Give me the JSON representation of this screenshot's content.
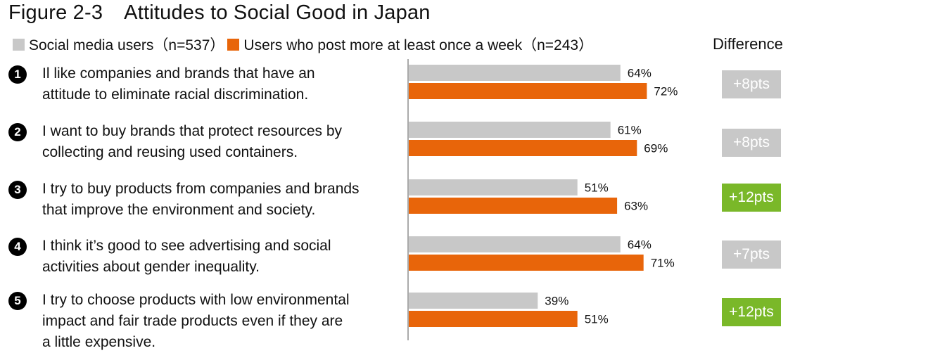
{
  "title": {
    "number": "Figure 2-3",
    "text": "Attitudes to Social Good in Japan"
  },
  "legend": [
    {
      "label": "Social media users（n=537）",
      "color": "#c8c8c8"
    },
    {
      "label": "Users who post more at least once a week（n=243）",
      "color": "#e8650a"
    }
  ],
  "difference_header": "Difference",
  "rows": [
    {
      "badge": "1",
      "lines": [
        "Il like companies and brands that have an",
        "attitude to eliminate racial discrimination."
      ],
      "diff": "+8pts",
      "diff_color": "#c8c8c8"
    },
    {
      "badge": "2",
      "lines": [
        "I want to buy brands that protect resources by",
        "collecting and reusing used containers."
      ],
      "diff": "+8pts",
      "diff_color": "#c8c8c8"
    },
    {
      "badge": "3",
      "lines": [
        "I try to buy products from companies and brands",
        "that improve the environment and society."
      ],
      "diff": "+12pts",
      "diff_color": "#7ab829"
    },
    {
      "badge": "4",
      "lines": [
        "I think it’s good to see advertising and social",
        "activities about gender inequality."
      ],
      "diff": "+7pts",
      "diff_color": "#c8c8c8"
    },
    {
      "badge": "5",
      "lines": [
        "I try to choose products with low environmental",
        "impact and fair trade products even if they are",
        "a little expensive."
      ],
      "diff": "+12pts",
      "diff_color": "#7ab829"
    }
  ],
  "chart_data": {
    "type": "bar",
    "orientation": "horizontal",
    "categories": [
      "1",
      "2",
      "3",
      "4",
      "5"
    ],
    "series": [
      {
        "name": "Social media users（n=537）",
        "color": "#c8c8c8",
        "values": [
          64,
          61,
          51,
          64,
          39
        ],
        "labels": [
          "64%",
          "61%",
          "51%",
          "64%",
          "39%"
        ]
      },
      {
        "name": "Users who post more at least once a week（n=243）",
        "color": "#e8650a",
        "values": [
          72,
          69,
          63,
          71,
          51
        ],
        "labels": [
          "72%",
          "69%",
          "63%",
          "71%",
          "51%"
        ]
      }
    ],
    "xlim": [
      0,
      100
    ],
    "grid": false,
    "legend_position": "top"
  }
}
